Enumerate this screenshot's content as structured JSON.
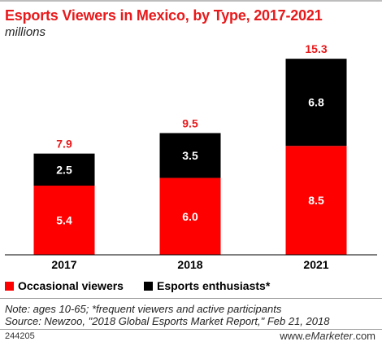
{
  "header": {
    "title": "Esports Viewers in Mexico, by Type, 2017-2021",
    "subtitle": "millions"
  },
  "colors": {
    "occasional": "#ff0000",
    "enthusiasts": "#000000",
    "total_label": "#e8191b",
    "title": "#e8191b"
  },
  "chart_data": {
    "type": "bar",
    "stacked": true,
    "title": "Esports Viewers in Mexico, by Type, 2017-2021",
    "subtitle": "millions",
    "categories": [
      "2017",
      "2018",
      "2021"
    ],
    "series": [
      {
        "name": "Occasional viewers",
        "values": [
          5.4,
          6.0,
          8.5
        ],
        "labels": [
          "5.4",
          "6.0",
          "8.5"
        ]
      },
      {
        "name": "Esports enthusiasts*",
        "values": [
          2.5,
          3.5,
          6.8
        ],
        "labels": [
          "2.5",
          "3.5",
          "6.8"
        ]
      }
    ],
    "totals": [
      7.9,
      9.5,
      15.3
    ],
    "total_labels": [
      "7.9",
      "9.5",
      "15.3"
    ],
    "ylim": [
      0,
      16.2
    ],
    "grid": false,
    "legend_position": "bottom-left"
  },
  "legend": {
    "occasional": "Occasional viewers",
    "enthusiasts": "Esports enthusiasts*"
  },
  "notes": {
    "line1": "Note: ages 10-65; *frequent viewers and active participants",
    "line2": "Source: Newzoo, \"2018 Global Esports Market Report,\" Feb 21, 2018"
  },
  "footer": {
    "chart_id": "244205",
    "brand_prefix": "www.",
    "brand_name": "eMarketer",
    "brand_suffix": ".com"
  }
}
